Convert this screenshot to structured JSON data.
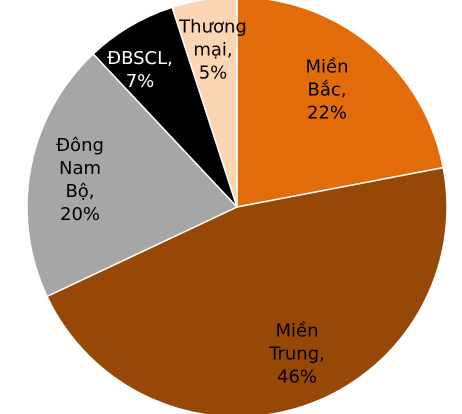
{
  "chart_data": {
    "type": "pie",
    "categories": [
      "Miền Bắc,",
      "Miền Trung,",
      "Đông Nam Bộ,",
      "ĐBSCL,",
      "Thương mại,"
    ],
    "values": [
      22,
      46,
      20,
      7,
      5
    ],
    "value_labels": [
      "22%",
      "46%",
      "20%",
      "7%",
      "5%"
    ],
    "colors": [
      "#E36C0A",
      "#974806",
      "#A6A6A6",
      "#000000",
      "#FCD5B4"
    ],
    "label_colors": [
      "#000000",
      "#000000",
      "#000000",
      "#ffffff",
      "#000000"
    ]
  }
}
